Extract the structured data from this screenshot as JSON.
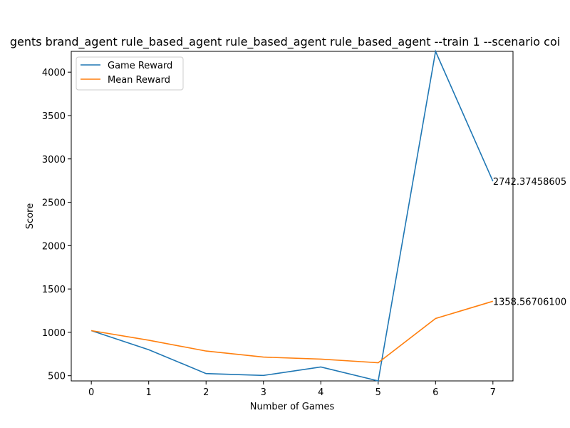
{
  "chart_data": {
    "type": "line",
    "title": "gents brand_agent rule_based_agent rule_based_agent rule_based_agent --train 1 --scenario coi",
    "xlabel": "Number of Games",
    "ylabel": "Score",
    "x": [
      0,
      1,
      2,
      3,
      4,
      5,
      6,
      7
    ],
    "xticks": [
      "0",
      "1",
      "2",
      "3",
      "4",
      "5",
      "6",
      "7"
    ],
    "yticks": [
      "500",
      "1000",
      "1500",
      "2000",
      "2500",
      "3000",
      "3500",
      "4000"
    ],
    "xlim": [
      -0.35,
      7.35
    ],
    "ylim": [
      440,
      4240
    ],
    "grid": false,
    "legend_position": "upper-left",
    "series": [
      {
        "name": "Game Reward",
        "color": "#1f77b4",
        "values": [
          1020,
          800,
          525,
          503,
          600,
          440,
          4240,
          2742.37
        ]
      },
      {
        "name": "Mean Reward",
        "color": "#ff7f0e",
        "values": [
          1020,
          910,
          785,
          715,
          692,
          650,
          1160,
          1358.57
        ]
      }
    ],
    "annotations": [
      "2742.37458605",
      "1358.56706100"
    ]
  }
}
